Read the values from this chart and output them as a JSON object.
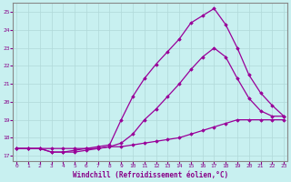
{
  "xlabel": "Windchill (Refroidissement éolien,°C)",
  "background_color": "#c8f0f0",
  "grid_color": "#b0d8d8",
  "line_color": "#990099",
  "tick_color": "#880088",
  "x_ticks": [
    0,
    1,
    2,
    3,
    4,
    5,
    6,
    7,
    8,
    9,
    10,
    11,
    12,
    13,
    14,
    15,
    16,
    17,
    18,
    19,
    20,
    21,
    22,
    23
  ],
  "y_ticks": [
    17,
    18,
    19,
    20,
    21,
    22,
    23,
    24,
    25
  ],
  "xlim": [
    -0.3,
    23.3
  ],
  "ylim": [
    16.7,
    25.5
  ],
  "line1_x": [
    0,
    1,
    2,
    3,
    4,
    5,
    6,
    7,
    8,
    9,
    10,
    11,
    12,
    13,
    14,
    15,
    16,
    17,
    18,
    19,
    20,
    21,
    22,
    23
  ],
  "line1_y": [
    17.4,
    17.4,
    17.4,
    17.4,
    17.4,
    17.4,
    17.4,
    17.4,
    17.5,
    17.5,
    17.6,
    17.7,
    17.8,
    17.9,
    18.0,
    18.2,
    18.4,
    18.6,
    18.8,
    19.0,
    19.0,
    19.0,
    19.0,
    19.0
  ],
  "line2_x": [
    0,
    1,
    2,
    3,
    4,
    5,
    6,
    7,
    8,
    9,
    10,
    11,
    12,
    13,
    14,
    15,
    16,
    17,
    18,
    19,
    20,
    21,
    22,
    23
  ],
  "line2_y": [
    17.4,
    17.4,
    17.4,
    17.2,
    17.2,
    17.2,
    17.3,
    17.4,
    17.5,
    17.7,
    18.2,
    19.0,
    19.6,
    20.3,
    21.0,
    21.8,
    22.5,
    23.0,
    22.5,
    21.3,
    20.2,
    19.5,
    19.2,
    19.2
  ],
  "line3_x": [
    0,
    1,
    2,
    3,
    4,
    5,
    6,
    7,
    8,
    9,
    10,
    11,
    12,
    13,
    14,
    15,
    16,
    17,
    18,
    19,
    20,
    21,
    22,
    23
  ],
  "line3_y": [
    17.4,
    17.4,
    17.4,
    17.2,
    17.2,
    17.3,
    17.4,
    17.5,
    17.6,
    19.0,
    20.3,
    21.3,
    22.1,
    22.8,
    23.5,
    24.4,
    24.8,
    25.2,
    24.3,
    23.0,
    21.5,
    20.5,
    19.8,
    19.2
  ]
}
